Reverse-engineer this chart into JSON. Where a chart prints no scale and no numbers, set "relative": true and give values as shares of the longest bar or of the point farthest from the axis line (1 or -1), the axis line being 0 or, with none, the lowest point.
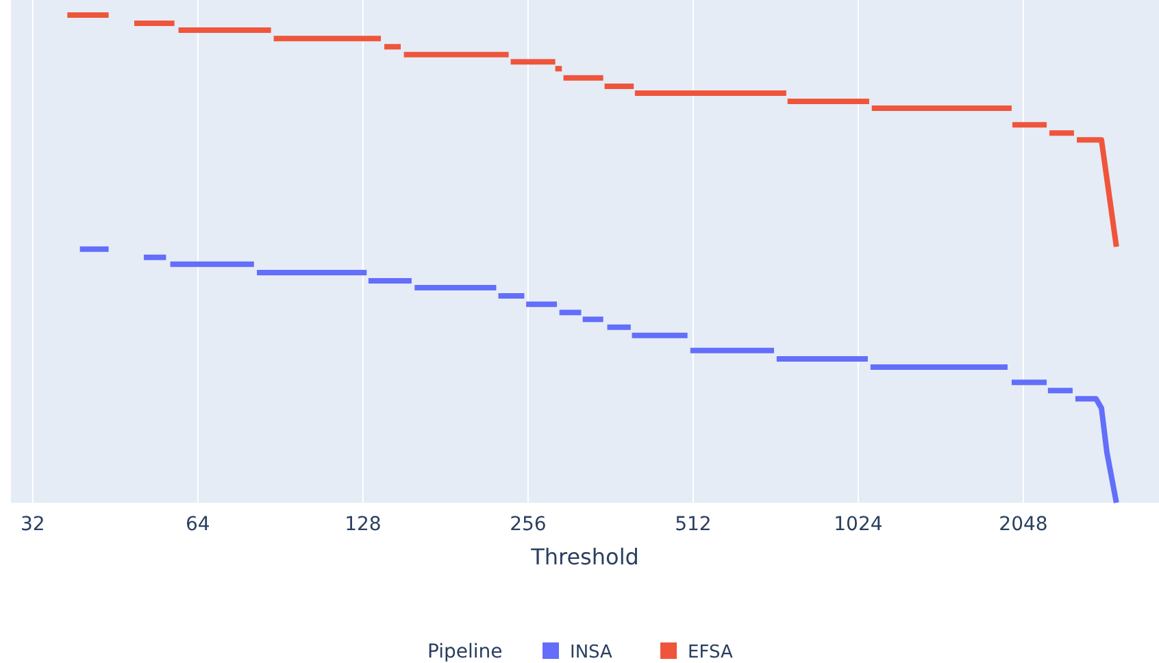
{
  "chart_data": {
    "type": "line",
    "relative": true,
    "xlabel": "Threshold",
    "legend_title": "Pipeline",
    "legend": "bottom",
    "grid": "x",
    "log": "x",
    "marker": "none",
    "line_style": "solid",
    "xlim": [
      29.2,
      3620
    ],
    "xticks": [
      32,
      64,
      128,
      256,
      512,
      1024,
      2048
    ],
    "series": [
      {
        "name": "INSA",
        "color": "#636efa",
        "x": [
          39,
          44,
          null,
          51,
          56,
          null,
          57,
          81,
          null,
          82,
          130,
          null,
          131,
          157,
          null,
          159,
          224,
          null,
          226,
          252,
          null,
          254,
          289,
          null,
          292,
          320,
          null,
          322,
          351,
          null,
          357,
          394,
          null,
          396,
          500,
          null,
          506,
          719,
          null,
          727,
          1066,
          null,
          1078,
          1917,
          null,
          1950,
          2259,
          null,
          2271,
          2519,
          null,
          2548,
          2779,
          2843,
          2908,
          3027
        ],
        "values": [
          0.52,
          0.52,
          null,
          0.503,
          0.503,
          null,
          0.489,
          0.489,
          null,
          0.472,
          0.472,
          null,
          0.455,
          0.455,
          null,
          0.441,
          0.441,
          null,
          0.424,
          0.424,
          null,
          0.407,
          0.407,
          null,
          0.39,
          0.39,
          null,
          0.376,
          0.376,
          null,
          0.36,
          0.36,
          null,
          0.343,
          0.343,
          null,
          0.312,
          0.312,
          null,
          0.295,
          0.295,
          null,
          0.278,
          0.278,
          null,
          0.247,
          0.247,
          null,
          0.23,
          0.23,
          null,
          0.213,
          0.213,
          0.194,
          0.104,
          0
        ]
      },
      {
        "name": "EFSA",
        "color": "#ef553b",
        "x": [
          37,
          44,
          null,
          49,
          58,
          null,
          59,
          87,
          null,
          88,
          138,
          null,
          140,
          150,
          null,
          152,
          236,
          null,
          238,
          287,
          null,
          287,
          295,
          null,
          297,
          351,
          null,
          353,
          399,
          null,
          401,
          757,
          null,
          761,
          1072,
          null,
          1084,
          1950,
          null,
          1956,
          2259,
          null,
          2285,
          2533,
          null,
          2564,
          2843,
          3027
        ],
        "values": [
          1,
          1,
          null,
          0.983,
          0.983,
          null,
          0.969,
          0.969,
          null,
          0.952,
          0.952,
          null,
          0.935,
          0.935,
          null,
          0.919,
          0.919,
          null,
          0.904,
          0.904,
          null,
          0.89,
          0.89,
          null,
          0.871,
          0.871,
          null,
          0.854,
          0.854,
          null,
          0.84,
          0.84,
          null,
          0.823,
          0.823,
          null,
          0.809,
          0.809,
          null,
          0.775,
          0.775,
          null,
          0.758,
          0.758,
          null,
          0.744,
          0.744,
          0.525
        ]
      }
    ]
  }
}
